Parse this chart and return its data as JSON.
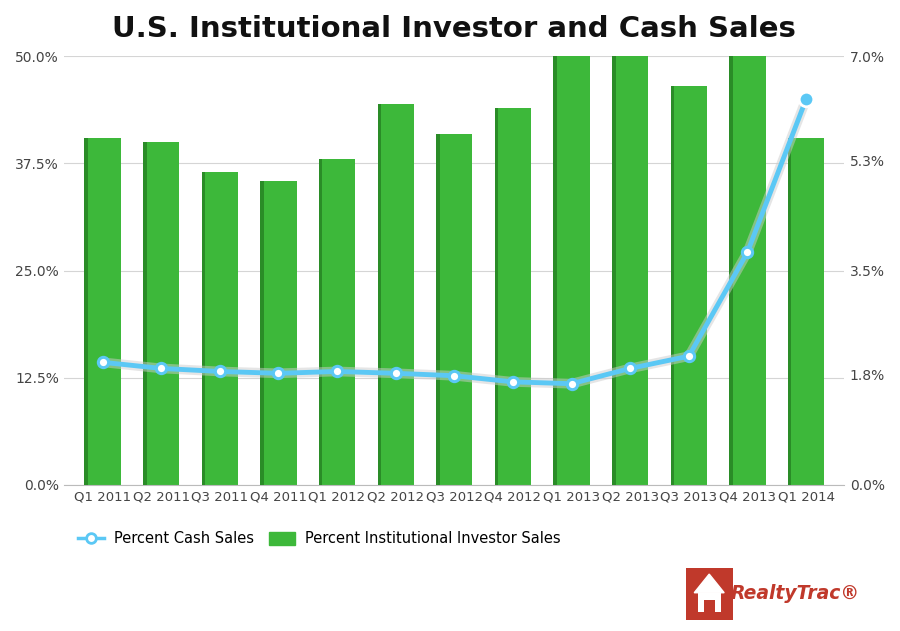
{
  "title": "U.S. Institutional Investor and Cash Sales",
  "categories": [
    "Q1 2011",
    "Q2 2011",
    "Q3 2011",
    "Q4 2011",
    "Q1 2012",
    "Q2 2012",
    "Q3 2012",
    "Q4 2012",
    "Q1 2013",
    "Q2 2013",
    "Q3 2013",
    "Q4 2013",
    "Q1 2014"
  ],
  "bar_values": [
    40.5,
    40.0,
    36.5,
    35.5,
    38.0,
    44.5,
    41.0,
    44.0,
    50.5,
    50.0,
    46.5,
    50.0,
    40.5
  ],
  "line_values": [
    2.0,
    1.9,
    1.85,
    1.82,
    1.85,
    1.82,
    1.78,
    1.68,
    1.65,
    1.9,
    2.1,
    3.8,
    6.3
  ],
  "bar_color": "#3db83a",
  "bar_color_dark": "#2a8c27",
  "line_color": "#5bc8f5",
  "left_ylim": [
    0,
    50.0
  ],
  "right_ylim": [
    0,
    7.0
  ],
  "left_yticks": [
    0.0,
    12.5,
    25.0,
    37.5,
    50.0
  ],
  "right_yticks": [
    0.0,
    1.8,
    3.5,
    5.3,
    7.0
  ],
  "background_color": "#ffffff",
  "title_fontsize": 21,
  "legend_label_bar": "Percent Institutional Investor Sales",
  "legend_label_line": "Percent Cash Sales",
  "realtytrac_red": "#c0392b",
  "grid_color": "#d5d5d5"
}
